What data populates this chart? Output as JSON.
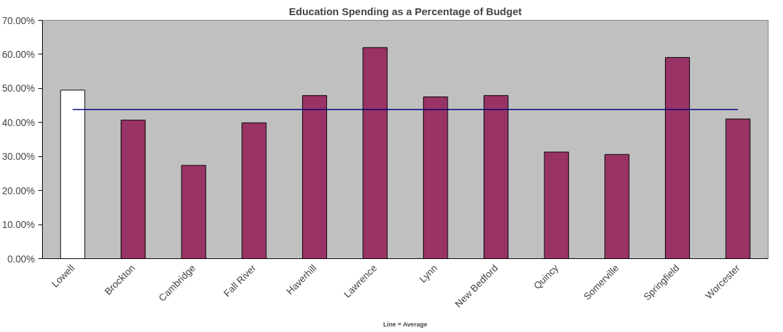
{
  "chart_data": {
    "type": "bar",
    "title": "Education Spending as a Percentage of Budget",
    "categories": [
      "Lowell",
      "Brockton",
      "Cambridge",
      "Fall River",
      "Haverhill",
      "Lawrence",
      "Lynn",
      "New Bedford",
      "Quincy",
      "Somerville",
      "Springfield",
      "Worcester"
    ],
    "series": [
      {
        "colors": [
          "#ffffff",
          "#993366",
          "#993366",
          "#993366",
          "#993366",
          "#993366",
          "#993366",
          "#993366",
          "#993366",
          "#993366",
          "#993366",
          "#993366"
        ],
        "values": [
          49.5,
          40.7,
          27.4,
          39.9,
          47.9,
          62.0,
          47.5,
          47.9,
          31.3,
          30.6,
          59.1,
          41.0
        ]
      },
      {
        "type": "line",
        "color": "#000080",
        "values": [
          43.8,
          43.8,
          43.8,
          43.8,
          43.8,
          43.8,
          43.8,
          43.8,
          43.8,
          43.8,
          43.8,
          43.8
        ]
      }
    ],
    "ylim": [
      0,
      70
    ],
    "yticks": [
      {
        "value": 0,
        "label": "0.00%"
      },
      {
        "value": 10,
        "label": "10.00%"
      },
      {
        "value": 20,
        "label": "20.00%"
      },
      {
        "value": 30,
        "label": "30.00%"
      },
      {
        "value": 40,
        "label": "40.00%"
      },
      {
        "value": 50,
        "label": "50.00%"
      },
      {
        "value": 60,
        "label": "60.00%"
      },
      {
        "value": 70,
        "label": "70.00%"
      }
    ],
    "grid": false,
    "annotations": [
      "Line = Average"
    ]
  }
}
